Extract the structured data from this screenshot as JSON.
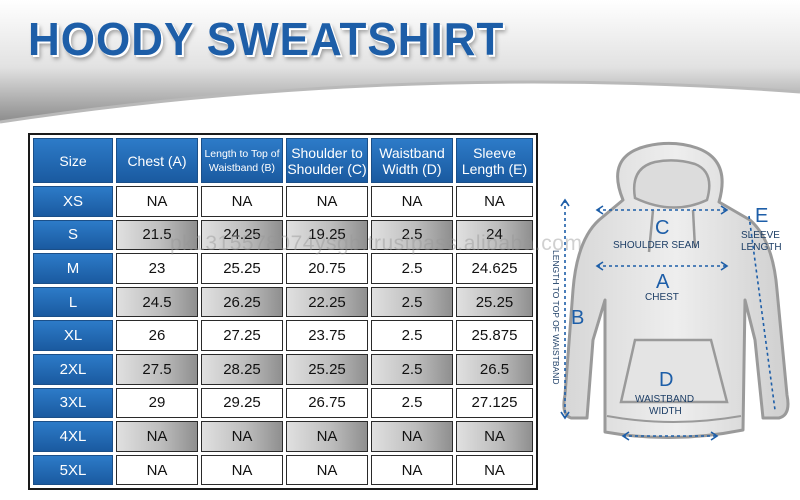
{
  "title": "HOODY SWEATSHIRT",
  "watermark": "pk1315578074ysgb.trustpass.alibaba.com",
  "colors": {
    "header_blue": "#1f66b0",
    "title_blue": "#1d5ea8",
    "row_gray": "#bdbdbd"
  },
  "table": {
    "headers": [
      "Size",
      "Chest (A)",
      "Length to Top of Waistband (B)",
      "Shoulder to Shoulder (C)",
      "Waistband Width (D)",
      "Sleeve Length (E)"
    ],
    "rows": [
      {
        "size": "XS",
        "values": [
          "NA",
          "NA",
          "NA",
          "NA",
          "NA"
        ]
      },
      {
        "size": "S",
        "values": [
          "21.5",
          "24.25",
          "19.25",
          "2.5",
          "24"
        ]
      },
      {
        "size": "M",
        "values": [
          "23",
          "25.25",
          "20.75",
          "2.5",
          "24.625"
        ]
      },
      {
        "size": "L",
        "values": [
          "24.5",
          "26.25",
          "22.25",
          "2.5",
          "25.25"
        ]
      },
      {
        "size": "XL",
        "values": [
          "26",
          "27.25",
          "23.75",
          "2.5",
          "25.875"
        ]
      },
      {
        "size": "2XL",
        "values": [
          "27.5",
          "28.25",
          "25.25",
          "2.5",
          "26.5"
        ]
      },
      {
        "size": "3XL",
        "values": [
          "29",
          "29.25",
          "26.75",
          "2.5",
          "27.125"
        ]
      },
      {
        "size": "4XL",
        "values": [
          "NA",
          "NA",
          "NA",
          "NA",
          "NA"
        ]
      },
      {
        "size": "5XL",
        "values": [
          "NA",
          "NA",
          "NA",
          "NA",
          "NA"
        ]
      }
    ]
  },
  "diagram": {
    "c_letter": "C",
    "c_label": "SHOULDER SEAM",
    "a_letter": "A",
    "a_label": "CHEST",
    "b_letter": "B",
    "b_label": "LENGTH TO TOP OF WAISTBAND",
    "d_letter": "D",
    "d_label_1": "WAISTBAND",
    "d_label_2": "WIDTH",
    "e_letter": "E",
    "e_label_1": "SLEEVE",
    "e_label_2": "LENGTH"
  }
}
